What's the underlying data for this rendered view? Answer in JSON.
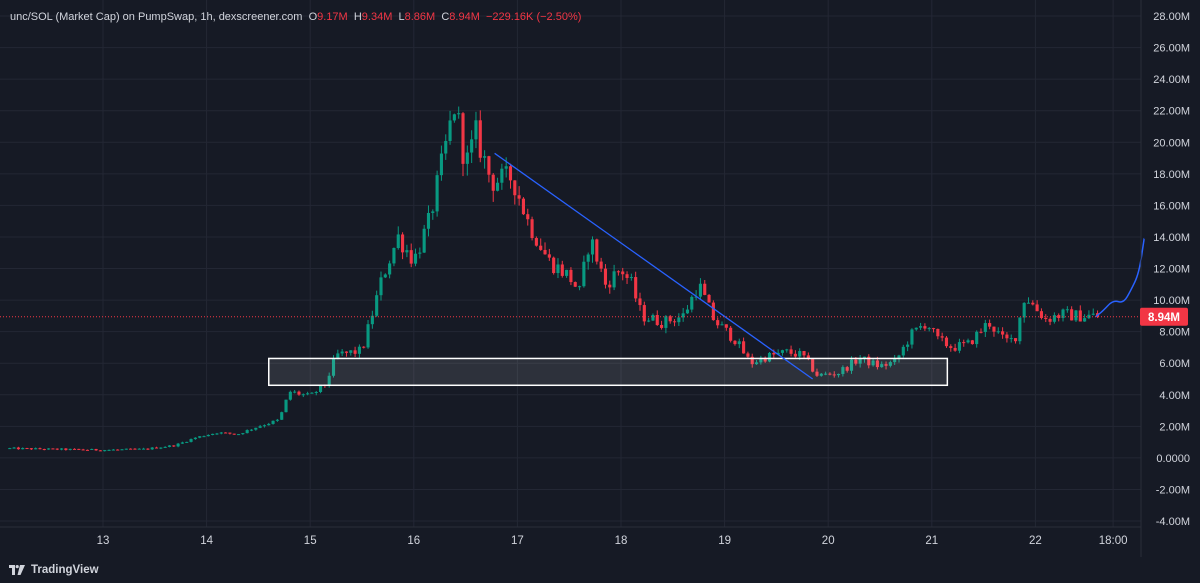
{
  "header": {
    "pair": "unc/SOL (Market Cap) on PumpSwap, 1h, dexscreener.com",
    "o_label": "O",
    "o_value": "9.17M",
    "h_label": "H",
    "h_value": "9.34M",
    "l_label": "L",
    "l_value": "8.86M",
    "c_label": "C",
    "c_value": "8.94M",
    "change": "−229.16K (−2.50%)"
  },
  "footer": {
    "brand": "TradingView",
    "logo_icon": "tradingview-logo-icon"
  },
  "colors": {
    "background": "#161a25",
    "grid": "#232734",
    "up": "#089981",
    "down": "#f23645",
    "trendline": "#2962ff",
    "box_border": "#ffffff",
    "price_tag": "#f23645",
    "axis_text": "#d1d4dc"
  },
  "chart_data": {
    "type": "candlestick",
    "title": "unc/SOL (Market Cap) on PumpSwap, 1h, dexscreener.com",
    "y_unit": "M",
    "ylim": [
      -4.0,
      28.0
    ],
    "y_ticks": [
      "28.00M",
      "26.00M",
      "24.00M",
      "22.00M",
      "20.00M",
      "18.00M",
      "16.00M",
      "14.00M",
      "12.00M",
      "10.00M",
      "8.00M",
      "6.00M",
      "4.00M",
      "2.00M",
      "0.0000",
      "-2.00M",
      "-4.00M"
    ],
    "y_tick_values": [
      28,
      26,
      24,
      22,
      20,
      18,
      16,
      14,
      12,
      10,
      8,
      6,
      4,
      2,
      0,
      -2,
      -4
    ],
    "x_ticks": [
      "13",
      "14",
      "15",
      "16",
      "17",
      "18",
      "19",
      "20",
      "21",
      "22",
      "18:00"
    ],
    "x_tick_days": [
      13,
      14,
      15,
      16,
      17,
      18,
      19,
      20,
      21,
      22,
      22.75
    ],
    "x_range_days": [
      12.1,
      23.05
    ],
    "candle_interval": "1h",
    "grid": true,
    "last_price": {
      "value": 8.94,
      "label": "8.94M"
    },
    "ohlc_last": {
      "open": 9.17,
      "high": 9.34,
      "low": 8.86,
      "close": 8.94,
      "change": -229.16,
      "change_pct": -2.5
    },
    "anchors": [
      [
        12.1,
        0.6
      ],
      [
        12.5,
        0.55
      ],
      [
        13.0,
        0.5
      ],
      [
        13.4,
        0.55
      ],
      [
        13.7,
        0.8
      ],
      [
        13.9,
        1.3
      ],
      [
        14.1,
        1.6
      ],
      [
        14.3,
        1.5
      ],
      [
        14.5,
        2.0
      ],
      [
        14.7,
        2.4
      ],
      [
        14.8,
        4.2
      ],
      [
        15.0,
        3.9
      ],
      [
        15.15,
        4.7
      ],
      [
        15.25,
        6.5
      ],
      [
        15.5,
        6.8
      ],
      [
        15.7,
        11.5
      ],
      [
        15.85,
        14.0
      ],
      [
        16.0,
        12.5
      ],
      [
        16.15,
        15.0
      ],
      [
        16.3,
        19.5
      ],
      [
        16.4,
        22.5
      ],
      [
        16.5,
        18.5
      ],
      [
        16.6,
        20.5
      ],
      [
        16.75,
        17.5
      ],
      [
        16.95,
        17.8
      ],
      [
        17.1,
        15.0
      ],
      [
        17.3,
        12.5
      ],
      [
        17.5,
        11.5
      ],
      [
        17.6,
        10.5
      ],
      [
        17.7,
        14.0
      ],
      [
        17.85,
        11.0
      ],
      [
        18.0,
        12.0
      ],
      [
        18.1,
        11.0
      ],
      [
        18.2,
        9.0
      ],
      [
        18.4,
        8.6
      ],
      [
        18.6,
        9.0
      ],
      [
        18.75,
        11.0
      ],
      [
        18.9,
        8.7
      ],
      [
        19.1,
        7.5
      ],
      [
        19.25,
        6.0
      ],
      [
        19.4,
        6.4
      ],
      [
        19.6,
        6.7
      ],
      [
        19.75,
        6.5
      ],
      [
        19.9,
        5.2
      ],
      [
        20.1,
        5.4
      ],
      [
        20.3,
        6.3
      ],
      [
        20.5,
        5.8
      ],
      [
        20.65,
        6.1
      ],
      [
        20.8,
        7.8
      ],
      [
        20.95,
        8.6
      ],
      [
        21.05,
        7.5
      ],
      [
        21.2,
        7.0
      ],
      [
        21.35,
        7.2
      ],
      [
        21.55,
        8.6
      ],
      [
        21.7,
        7.4
      ],
      [
        21.8,
        7.5
      ],
      [
        21.9,
        10.3
      ],
      [
        22.0,
        9.5
      ],
      [
        22.1,
        8.8
      ],
      [
        22.25,
        9.1
      ],
      [
        22.4,
        9.0
      ],
      [
        22.55,
        9.0
      ],
      [
        22.58,
        8.94
      ]
    ],
    "annotations": {
      "trendline": {
        "from": {
          "x_day": 16.78,
          "y": 19.3
        },
        "to": {
          "x_day": 19.85,
          "y": 5.0
        }
      },
      "support_box": {
        "x_days": [
          14.6,
          21.15
        ],
        "y_range": [
          4.6,
          6.3
        ]
      },
      "projection_path": [
        [
          22.58,
          8.94
        ],
        [
          22.65,
          9.3
        ],
        [
          22.75,
          10.0
        ],
        [
          22.85,
          9.8
        ],
        [
          22.92,
          10.6
        ],
        [
          23.0,
          11.7
        ],
        [
          23.05,
          13.9
        ]
      ]
    }
  }
}
